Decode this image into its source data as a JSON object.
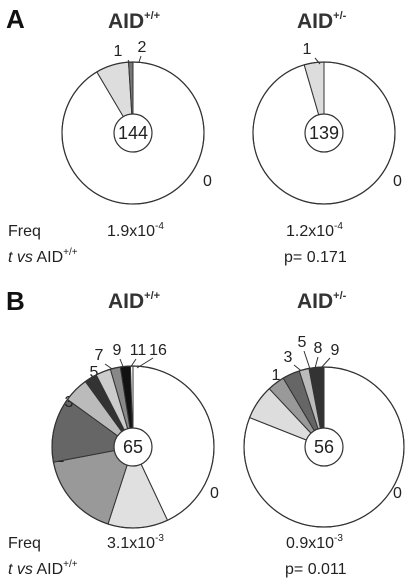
{
  "panels": [
    {
      "letter": "A",
      "row_labels": {
        "freq": "Freq",
        "t_italic": "t vs",
        "t_rest": " AID",
        "t_sup": "+/+"
      },
      "charts": [
        {
          "genotype": "AID",
          "genotype_sup": "+/+",
          "center": "144",
          "freq_mantissa": "1.9x10",
          "freq_exp": "-4",
          "pvalue": ""
        },
        {
          "genotype": "AID",
          "genotype_sup": "+/-",
          "center": "139",
          "freq_mantissa": "1.2x10",
          "freq_exp": "-4",
          "pvalue": "p= 0.171"
        }
      ]
    },
    {
      "letter": "B",
      "row_labels": {
        "freq": "Freq",
        "t_italic": "t vs",
        "t_rest": " AID",
        "t_sup": "+/+"
      },
      "charts": [
        {
          "genotype": "AID",
          "genotype_sup": "+/+",
          "center": "65",
          "freq_mantissa": "3.1x10",
          "freq_exp": "-3",
          "pvalue": ""
        },
        {
          "genotype": "AID",
          "genotype_sup": "+/-",
          "center": "56",
          "freq_mantissa": "0.9x10",
          "freq_exp": "-3",
          "pvalue": "p= 0.011"
        }
      ]
    }
  ],
  "chart_data": [
    {
      "type": "pie",
      "panel": "A",
      "title": "AID+/+",
      "center_label": "144",
      "slices": [
        {
          "label": "0",
          "fraction": 0.915,
          "color": "#ffffff"
        },
        {
          "label": "1",
          "fraction": 0.075,
          "color": "#dddddd"
        },
        {
          "label": "2",
          "fraction": 0.01,
          "color": "#777777"
        }
      ]
    },
    {
      "type": "pie",
      "panel": "A",
      "title": "AID+/-",
      "center_label": "139",
      "slices": [
        {
          "label": "0",
          "fraction": 0.955,
          "color": "#ffffff"
        },
        {
          "label": "1",
          "fraction": 0.045,
          "color": "#dddddd"
        }
      ]
    },
    {
      "type": "pie",
      "panel": "B",
      "title": "AID+/+",
      "center_label": "65",
      "slices": [
        {
          "label": "0",
          "fraction": 0.43,
          "color": "#ffffff"
        },
        {
          "label": "1",
          "fraction": 0.12,
          "color": "#e0e0e0"
        },
        {
          "label": "2",
          "fraction": 0.17,
          "color": "#999999"
        },
        {
          "label": "3",
          "fraction": 0.13,
          "color": "#666666"
        },
        {
          "label": "5",
          "fraction": 0.05,
          "color": "#bbbbbb"
        },
        {
          "label": "7",
          "fraction": 0.025,
          "color": "#333333"
        },
        {
          "label": "9",
          "fraction": 0.03,
          "color": "#cccccc"
        },
        {
          "label": "11",
          "fraction": 0.02,
          "color": "#888888"
        },
        {
          "label": "16",
          "fraction": 0.02,
          "color": "#111111"
        }
      ]
    },
    {
      "type": "pie",
      "panel": "B",
      "title": "AID+/-",
      "center_label": "56",
      "slices": [
        {
          "label": "0",
          "fraction": 0.81,
          "color": "#ffffff"
        },
        {
          "label": "1",
          "fraction": 0.07,
          "color": "#dddddd"
        },
        {
          "label": "3",
          "fraction": 0.035,
          "color": "#999999"
        },
        {
          "label": "5",
          "fraction": 0.035,
          "color": "#666666"
        },
        {
          "label": "8",
          "fraction": 0.02,
          "color": "#bbbbbb"
        },
        {
          "label": "9",
          "fraction": 0.03,
          "color": "#333333"
        }
      ]
    }
  ]
}
